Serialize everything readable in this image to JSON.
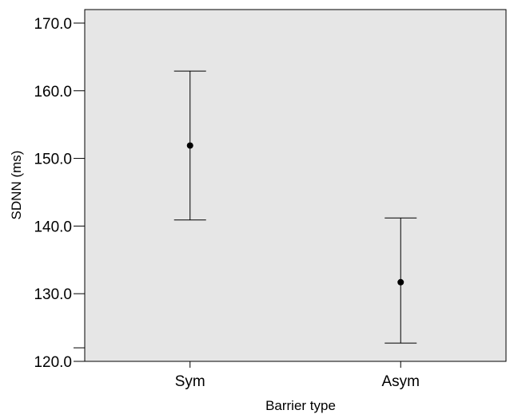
{
  "chart_data": {
    "type": "errorbar",
    "title": "",
    "xlabel": "Barrier type",
    "ylabel": "SDNN (ms)",
    "categories": [
      "Sym",
      "Asym"
    ],
    "series": [
      {
        "values": [
          151.9,
          131.7
        ],
        "lower": [
          140.9,
          122.7
        ],
        "upper": [
          162.9,
          141.2
        ]
      }
    ],
    "ylim": [
      120.0,
      172.0
    ],
    "yticks": [
      120.0,
      122.0,
      130.0,
      140.0,
      150.0,
      160.0,
      170.0
    ],
    "ytick_labels": [
      "120.0",
      "",
      "130.0",
      "140.0",
      "150.0",
      "160.0",
      "170.0"
    ],
    "grid": false,
    "legend": "none",
    "colors": {
      "plot_background": "#e6e6e6",
      "marker": "#000000",
      "line": "#000000"
    }
  }
}
